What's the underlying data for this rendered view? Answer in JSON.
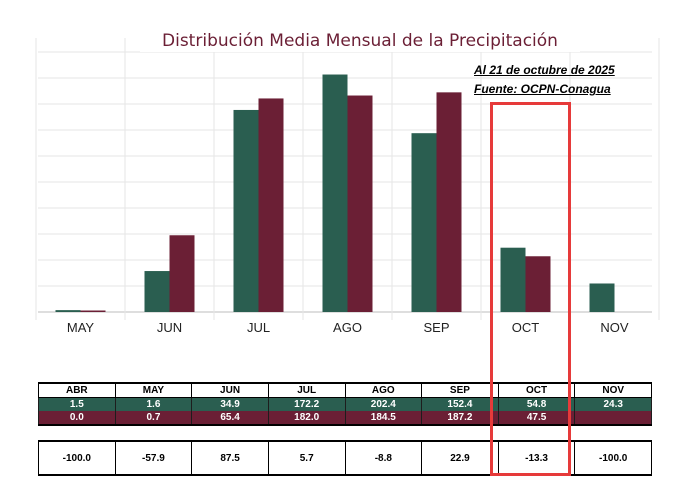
{
  "chart_data": {
    "type": "bar",
    "title": "Distribución Media Mensual de la Precipitación",
    "notes": [
      "Al 21 de octubre de 2025",
      "Fuente: OCPN-Conagua"
    ],
    "categories": [
      "MAY",
      "JUN",
      "JUL",
      "AGO",
      "SEP",
      "OCT",
      "NOV"
    ],
    "series": [
      {
        "values": [
          1.6,
          34.9,
          172.2,
          202.4,
          152.4,
          54.8,
          24.3
        ],
        "color": "#2a5e50"
      },
      {
        "values": [
          0.7,
          65.4,
          182.0,
          184.5,
          187.2,
          47.5,
          null
        ],
        "color": "#6b1f35"
      }
    ],
    "ylim": [
      0,
      225
    ],
    "grid": true,
    "highlight_category": "OCT",
    "table": {
      "headers": [
        "ABR",
        "MAY",
        "JUN",
        "JUL",
        "AGO",
        "SEP",
        "OCT",
        "NOV"
      ],
      "row_green": [
        "1.5",
        "1.6",
        "34.9",
        "172.2",
        "202.4",
        "152.4",
        "54.8",
        "24.3"
      ],
      "row_maroon": [
        "0.0",
        "0.7",
        "65.4",
        "182.0",
        "184.5",
        "187.2",
        "47.5",
        ""
      ],
      "row_pct": [
        "-100.0",
        "-57.9",
        "87.5",
        "5.7",
        "-8.8",
        "22.9",
        "-13.3",
        "-100.0"
      ]
    }
  }
}
